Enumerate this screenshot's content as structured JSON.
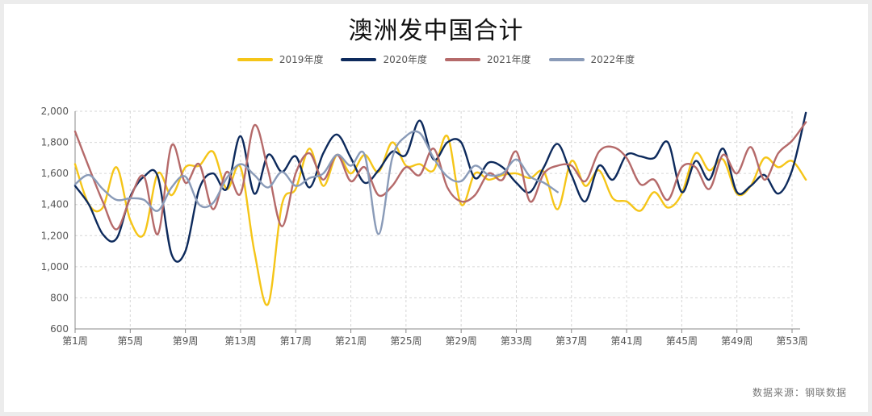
{
  "chart_data": {
    "type": "line",
    "title": "澳洲发中国合计",
    "source": "数据来源：钢联数据",
    "x_labels": [
      "第1周",
      "第5周",
      "第9周",
      "第13周",
      "第17周",
      "第21周",
      "第25周",
      "第29周",
      "第33周",
      "第37周",
      "第41周",
      "第45周",
      "第49周",
      "第53周"
    ],
    "x_range": [
      1,
      53
    ],
    "ylim": [
      600,
      2000
    ],
    "yticks": [
      "600",
      "800",
      "1,000",
      "1,200",
      "1,400",
      "1,600",
      "1,800",
      "2,000"
    ],
    "grid": true,
    "legend_position": "top",
    "series": [
      {
        "name": "2019年度",
        "color": "#f5c518",
        "values": [
          1660,
          1400,
          1380,
          1640,
          1300,
          1210,
          1600,
          1460,
          1640,
          1650,
          1740,
          1500,
          1640,
          1100,
          760,
          1400,
          1500,
          1760,
          1520,
          1720,
          1600,
          1720,
          1610,
          1800,
          1650,
          1660,
          1620,
          1840,
          1400,
          1600,
          1560,
          1590,
          1600,
          1570,
          1610,
          1370,
          1680,
          1520,
          1620,
          1440,
          1420,
          1360,
          1480,
          1380,
          1470,
          1730,
          1620,
          1690,
          1470,
          1520,
          1700,
          1640,
          1680,
          1560
        ]
      },
      {
        "name": "2020年度",
        "color": "#0d2a5c",
        "values": [
          1520,
          1400,
          1210,
          1180,
          1450,
          1580,
          1580,
          1080,
          1100,
          1500,
          1600,
          1500,
          1840,
          1470,
          1720,
          1610,
          1710,
          1510,
          1730,
          1850,
          1700,
          1540,
          1620,
          1740,
          1720,
          1940,
          1690,
          1800,
          1800,
          1570,
          1670,
          1640,
          1540,
          1480,
          1640,
          1790,
          1590,
          1420,
          1650,
          1560,
          1720,
          1710,
          1700,
          1800,
          1480,
          1680,
          1560,
          1760,
          1480,
          1520,
          1590,
          1470,
          1620,
          1990
        ]
      },
      {
        "name": "2021年度",
        "color": "#b56a6a",
        "values": [
          1870,
          1640,
          1420,
          1240,
          1440,
          1580,
          1210,
          1780,
          1540,
          1660,
          1370,
          1610,
          1470,
          1910,
          1620,
          1260,
          1600,
          1730,
          1560,
          1720,
          1550,
          1640,
          1460,
          1520,
          1640,
          1590,
          1760,
          1510,
          1420,
          1460,
          1600,
          1560,
          1740,
          1420,
          1600,
          1650,
          1650,
          1550,
          1740,
          1770,
          1700,
          1530,
          1560,
          1430,
          1640,
          1640,
          1500,
          1720,
          1600,
          1770,
          1560,
          1730,
          1810,
          1930
        ]
      },
      {
        "name": "2022年度",
        "color": "#8a9bb8",
        "values": [
          1530,
          1590,
          1500,
          1430,
          1440,
          1430,
          1360,
          1510,
          1580,
          1400,
          1410,
          1570,
          1660,
          1590,
          1510,
          1610,
          1520,
          1570,
          1600,
          1720,
          1650,
          1720,
          1210,
          1700,
          1840,
          1860,
          1700,
          1580,
          1550,
          1650,
          1590,
          1600,
          1690,
          1580,
          1540,
          1480
        ]
      }
    ]
  }
}
